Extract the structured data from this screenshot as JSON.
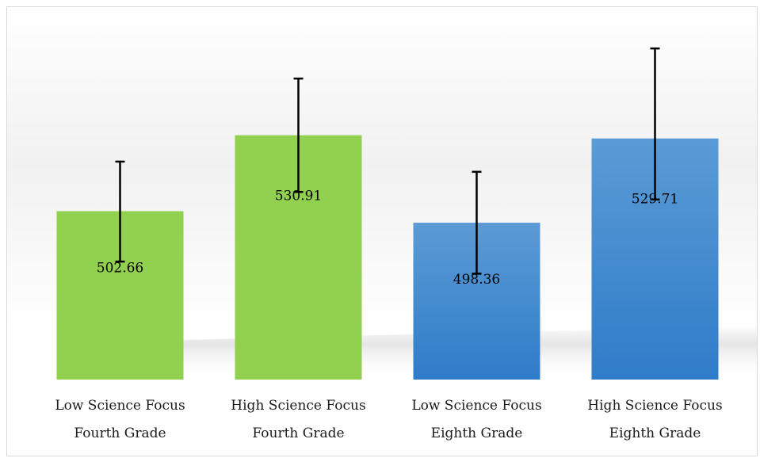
{
  "chart_data": {
    "type": "bar",
    "title": "",
    "xlabel": "",
    "ylabel": "",
    "ylim": [
      440,
      560
    ],
    "grid": false,
    "legend": "none",
    "categories": [
      [
        "Low Science Focus",
        "Fourth Grade"
      ],
      [
        "High Science Focus",
        "Fourth Grade"
      ],
      [
        "Low Science Focus",
        "Eighth Grade"
      ],
      [
        "High Science Focus",
        "Eighth Grade"
      ]
    ],
    "values": [
      502.66,
      530.91,
      498.36,
      529.71
    ],
    "value_labels": [
      "502.66",
      "530.91",
      "498.36",
      "529.71"
    ],
    "error_bars": [
      [
        483.9,
        521.1
      ],
      [
        509.8,
        552.0
      ],
      [
        479.4,
        517.3
      ],
      [
        507.0,
        563.2
      ]
    ],
    "bar_colors": [
      "#92d050",
      "#92d050",
      "#4a8fd6",
      "#4a8fd6"
    ]
  }
}
